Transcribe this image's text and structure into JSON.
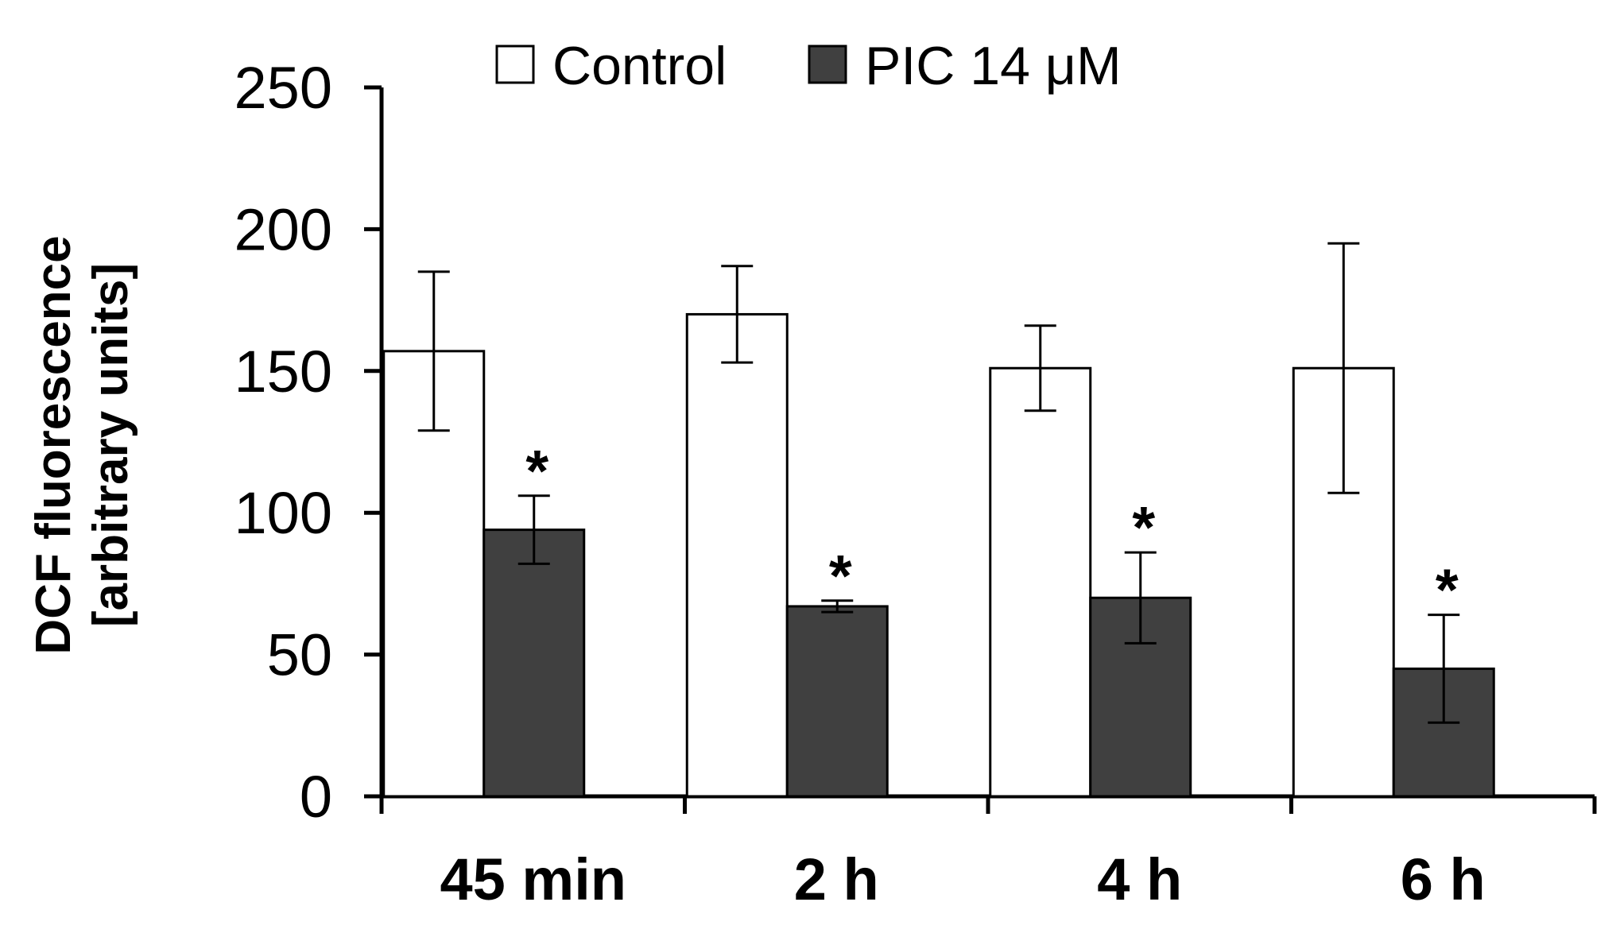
{
  "chart_data": {
    "type": "bar",
    "title": "",
    "xlabel": "",
    "ylabel": [
      "DCF fluorescence",
      "[arbitrary units]"
    ],
    "ylim": [
      0,
      250
    ],
    "yticks": [
      0,
      50,
      100,
      150,
      200,
      250
    ],
    "ytick_labels": [
      "0",
      "50",
      "100",
      "150",
      "200",
      "250"
    ],
    "grid": false,
    "legend_position": "top-center",
    "categories": [
      "45 min",
      "2 h",
      "4 h",
      "6 h"
    ],
    "series": [
      {
        "name": "Control",
        "color": "#ffffff",
        "values": [
          157,
          170,
          151,
          151
        ],
        "errors": [
          28,
          17,
          15,
          44
        ],
        "significance": [
          "",
          "",
          "",
          ""
        ]
      },
      {
        "name": "PIC 14 μM",
        "color": "#404040",
        "values": [
          94,
          67,
          70,
          45
        ],
        "errors": [
          12,
          2,
          16,
          19
        ],
        "significance": [
          "*",
          "*",
          "*",
          "*"
        ]
      }
    ]
  }
}
